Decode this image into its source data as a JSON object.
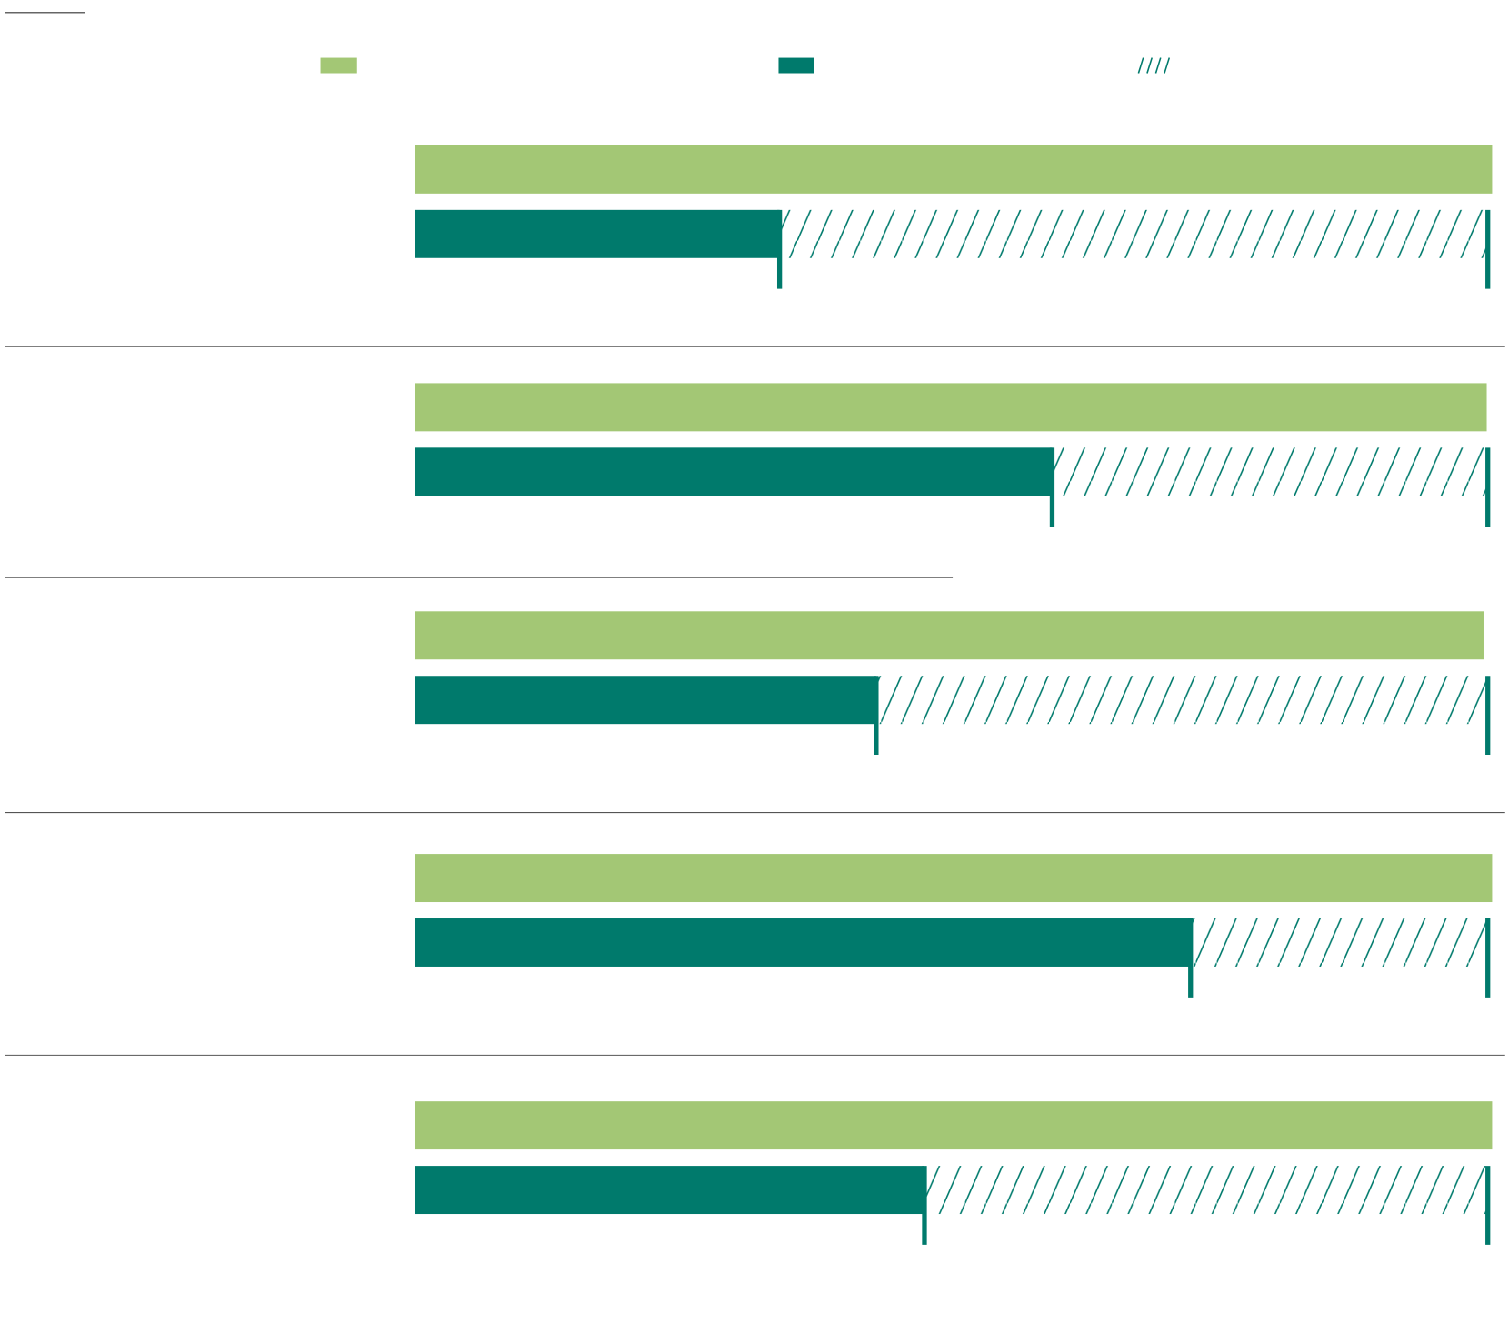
{
  "chart_data": {
    "type": "bar",
    "categories": [
      null,
      null,
      null,
      null,
      null
    ],
    "series": [
      {
        "color": "#a3c775",
        "values": [
          100.4,
          99.9,
          99.6,
          100.4,
          100.4
        ]
      },
      {
        "color": "#007a6c",
        "values": [
          34,
          59.4,
          43,
          72.3,
          47.5
        ]
      },
      {
        "color": "#007a6c",
        "pattern": "hatch",
        "values": [
          100,
          100,
          100,
          100,
          100
        ]
      }
    ],
    "xlim": [
      0,
      100
    ]
  }
}
